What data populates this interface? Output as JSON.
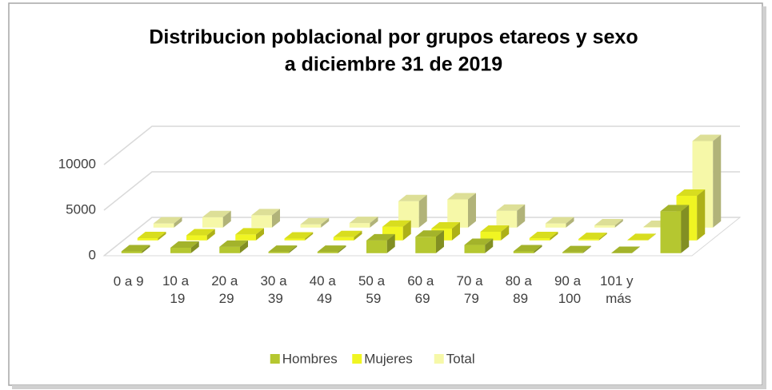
{
  "chart_data": {
    "type": "bar3d",
    "title": [
      "Distribucion poblacional por grupos etareos y sexo",
      "a diciembre 31 de 2019"
    ],
    "categories": [
      "0 a 9",
      "10 a 19",
      "20 a 29",
      "30 a 39",
      "40 a 49",
      "50 a 59",
      "60 a 69",
      "70 a 79",
      "80 a 89",
      "90 a 100",
      "101 y más",
      null
    ],
    "series": [
      {
        "name": "Hombres",
        "color": "#b5c730",
        "values": [
          200,
          600,
          700,
          150,
          150,
          1400,
          1800,
          900,
          200,
          100,
          30,
          4600
        ]
      },
      {
        "name": "Mujeres",
        "color": "#f0f522",
        "values": [
          250,
          550,
          650,
          200,
          350,
          1500,
          1300,
          950,
          250,
          150,
          40,
          4900
        ]
      },
      {
        "name": "Total",
        "color": "#f6f8a8",
        "values": [
          450,
          1150,
          1350,
          350,
          500,
          2900,
          3100,
          1850,
          450,
          250,
          70,
          9500
        ]
      }
    ],
    "ylim": [
      0,
      10000
    ],
    "yticks": [
      0,
      5000,
      10000
    ],
    "grid": true,
    "legend": "bottom"
  }
}
